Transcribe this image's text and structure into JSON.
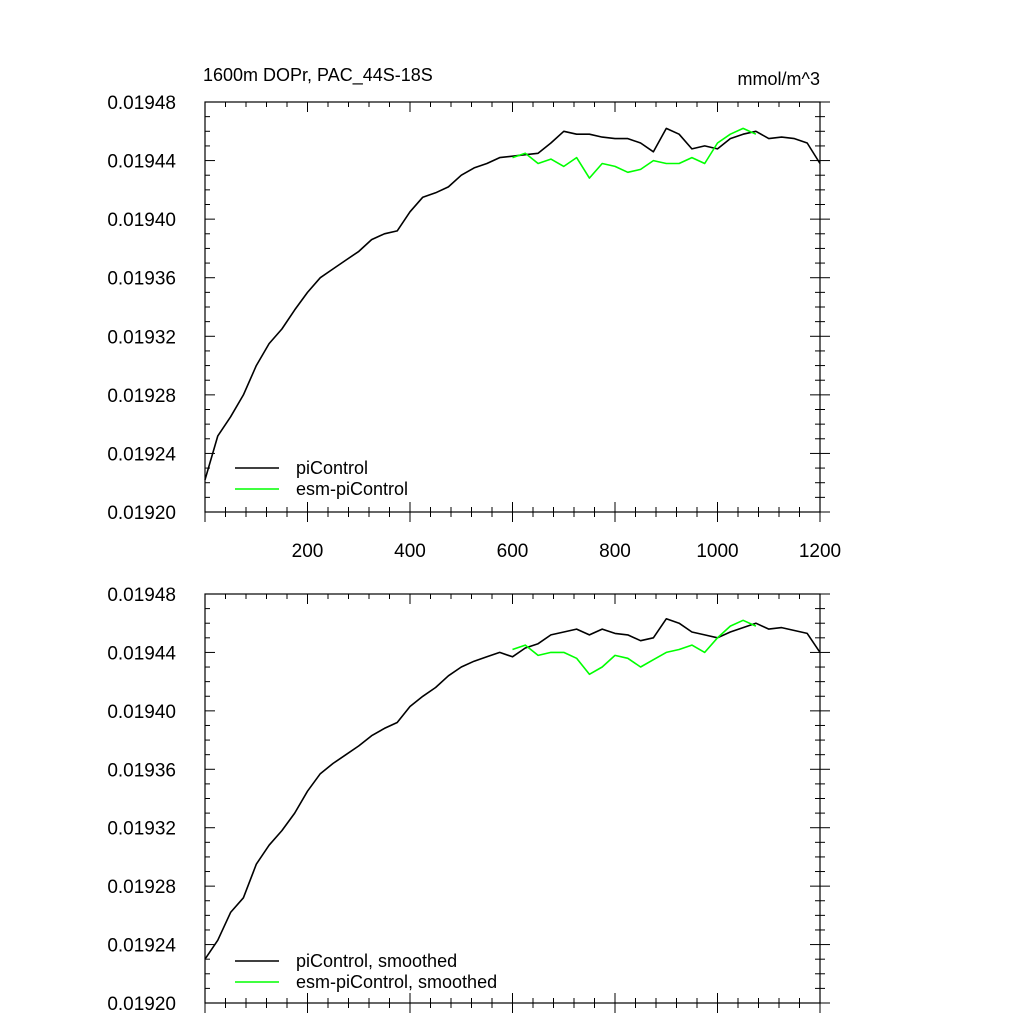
{
  "chart_data": [
    {
      "type": "line",
      "title": "1600m DOPr, PAC_44S-18S",
      "units": "mmol/m^3",
      "xlim": [
        0,
        1200
      ],
      "ylim": [
        0.0192,
        0.01948
      ],
      "x_ticks": [
        200,
        400,
        600,
        800,
        1000,
        1200
      ],
      "y_ticks": [
        "0.01920",
        "0.01924",
        "0.01928",
        "0.01932",
        "0.01936",
        "0.01940",
        "0.01944",
        "0.01948"
      ],
      "grid": false,
      "legend": "bottom-left",
      "series": [
        {
          "name": "piControl",
          "color": "#000000",
          "x": [
            0,
            25,
            50,
            75,
            100,
            125,
            150,
            175,
            200,
            225,
            250,
            275,
            300,
            325,
            350,
            375,
            400,
            425,
            450,
            475,
            500,
            525,
            550,
            575,
            600,
            625,
            650,
            675,
            700,
            725,
            750,
            775,
            800,
            825,
            850,
            875,
            900,
            925,
            950,
            975,
            1000,
            1025,
            1050,
            1075,
            1100,
            1125,
            1150,
            1175,
            1200
          ],
          "y": [
            0.019222,
            0.019252,
            0.019265,
            0.01928,
            0.0193,
            0.019315,
            0.019325,
            0.019338,
            0.01935,
            0.01936,
            0.019366,
            0.019372,
            0.019378,
            0.019386,
            0.01939,
            0.019392,
            0.019405,
            0.019415,
            0.019418,
            0.019422,
            0.01943,
            0.019435,
            0.019438,
            0.019442,
            0.019443,
            0.019444,
            0.019445,
            0.019452,
            0.01946,
            0.019458,
            0.019458,
            0.019456,
            0.019455,
            0.019455,
            0.019452,
            0.019446,
            0.019462,
            0.019458,
            0.019448,
            0.01945,
            0.019448,
            0.019455,
            0.019458,
            0.01946,
            0.019455,
            0.019456,
            0.019455,
            0.019452,
            0.019438
          ]
        },
        {
          "name": "esm-piControl",
          "color": "#00ff00",
          "x": [
            600,
            625,
            650,
            675,
            700,
            725,
            750,
            775,
            800,
            825,
            850,
            875,
            900,
            925,
            950,
            975,
            1000,
            1025,
            1050,
            1075
          ],
          "y": [
            0.019442,
            0.019445,
            0.019438,
            0.019441,
            0.019436,
            0.019442,
            0.019428,
            0.019438,
            0.019436,
            0.019432,
            0.019434,
            0.01944,
            0.019438,
            0.019438,
            0.019442,
            0.019438,
            0.019452,
            0.019458,
            0.019462,
            0.019458
          ]
        }
      ]
    },
    {
      "type": "line",
      "xlim": [
        0,
        1200
      ],
      "ylim": [
        0.0192,
        0.01948
      ],
      "y_ticks": [
        "0.01920",
        "0.01924",
        "0.01928",
        "0.01932",
        "0.01936",
        "0.01940",
        "0.01944",
        "0.01948"
      ],
      "grid": false,
      "legend": "bottom-left",
      "series": [
        {
          "name": "piControl, smoothed",
          "color": "#000000",
          "x": [
            0,
            25,
            50,
            75,
            100,
            125,
            150,
            175,
            200,
            225,
            250,
            275,
            300,
            325,
            350,
            375,
            400,
            425,
            450,
            475,
            500,
            525,
            550,
            575,
            600,
            625,
            650,
            675,
            700,
            725,
            750,
            775,
            800,
            825,
            850,
            875,
            900,
            925,
            950,
            975,
            1000,
            1025,
            1050,
            1075,
            1100,
            1125,
            1150,
            1175,
            1200
          ],
          "y": [
            0.01923,
            0.019243,
            0.019262,
            0.019272,
            0.019295,
            0.019308,
            0.019318,
            0.01933,
            0.019345,
            0.019357,
            0.019364,
            0.01937,
            0.019376,
            0.019383,
            0.019388,
            0.019392,
            0.019403,
            0.01941,
            0.019416,
            0.019424,
            0.01943,
            0.019434,
            0.019437,
            0.01944,
            0.019437,
            0.019443,
            0.019446,
            0.019452,
            0.019454,
            0.019456,
            0.019452,
            0.019456,
            0.019453,
            0.019452,
            0.019448,
            0.01945,
            0.019463,
            0.01946,
            0.019454,
            0.019452,
            0.01945,
            0.019454,
            0.019457,
            0.01946,
            0.019456,
            0.019457,
            0.019455,
            0.019453,
            0.01944
          ]
        },
        {
          "name": "esm-piControl, smoothed",
          "color": "#00ff00",
          "x": [
            600,
            625,
            650,
            675,
            700,
            725,
            750,
            775,
            800,
            825,
            850,
            875,
            900,
            925,
            950,
            975,
            1000,
            1025,
            1050,
            1075
          ],
          "y": [
            0.019442,
            0.019445,
            0.019438,
            0.01944,
            0.01944,
            0.019436,
            0.019425,
            0.01943,
            0.019438,
            0.019436,
            0.01943,
            0.019435,
            0.01944,
            0.019442,
            0.019445,
            0.01944,
            0.01945,
            0.019458,
            0.019462,
            0.019458
          ]
        }
      ]
    }
  ]
}
